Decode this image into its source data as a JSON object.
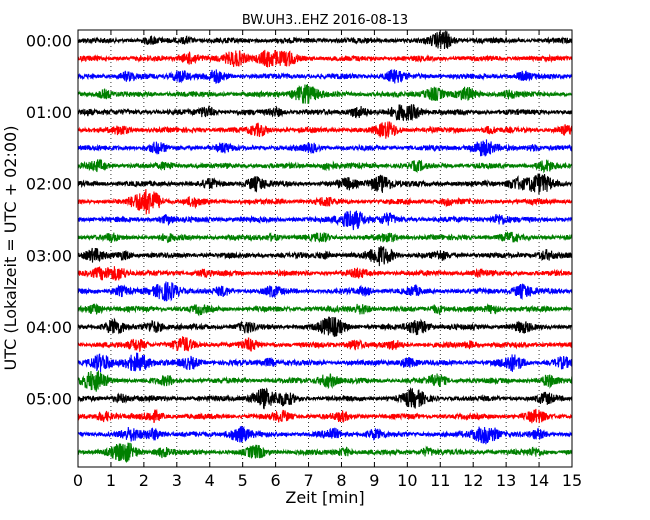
{
  "chart_data": {
    "type": "line",
    "title": "BW.UH3..EHZ 2016-08-13",
    "xlabel": "Zeit  [min]",
    "ylabel": "UTC (Lokalzeit = UTC + 02:00)",
    "xlim": [
      0,
      15
    ],
    "x_ticks": [
      "0",
      "1",
      "2",
      "3",
      "4",
      "5",
      "6",
      "7",
      "8",
      "9",
      "10",
      "11",
      "12",
      "13",
      "14",
      "15"
    ],
    "y_ticks": [
      "00:00",
      "01:00",
      "02:00",
      "03:00",
      "04:00",
      "05:00"
    ],
    "trace_minutes": 15,
    "grid": {
      "vertical_dotted": true
    },
    "colors": [
      "#000000",
      "#ff0000",
      "#0000ff",
      "#008000"
    ],
    "traces": [
      {
        "start": "00:00",
        "color": "#000000",
        "events": [
          [
            2.2,
            0.3
          ],
          [
            3.3,
            0.3
          ],
          [
            11.0,
            0.7
          ],
          [
            11.2,
            0.4
          ]
        ]
      },
      {
        "start": "00:15",
        "color": "#ff0000",
        "events": [
          [
            3.4,
            0.6
          ],
          [
            4.8,
            0.8
          ],
          [
            5.8,
            0.9
          ],
          [
            6.4,
            0.6
          ]
        ]
      },
      {
        "start": "00:30",
        "color": "#0000ff",
        "events": [
          [
            1.5,
            0.4
          ],
          [
            3.1,
            0.6
          ],
          [
            4.2,
            0.6
          ],
          [
            9.6,
            0.6
          ],
          [
            13.5,
            0.4
          ]
        ]
      },
      {
        "start": "00:45",
        "color": "#008000",
        "events": [
          [
            0.8,
            0.4
          ],
          [
            6.9,
            1.0
          ],
          [
            10.8,
            0.7
          ],
          [
            11.8,
            0.6
          ],
          [
            13.1,
            0.4
          ]
        ]
      },
      {
        "start": "01:00",
        "color": "#000000",
        "events": [
          [
            0.3,
            0.3
          ],
          [
            3.9,
            0.5
          ],
          [
            6.0,
            0.4
          ],
          [
            8.5,
            0.6
          ],
          [
            9.8,
            0.7
          ],
          [
            10.2,
            0.6
          ]
        ]
      },
      {
        "start": "01:15",
        "color": "#ff0000",
        "events": [
          [
            1.3,
            0.4
          ],
          [
            5.5,
            0.6
          ],
          [
            9.4,
            0.8
          ],
          [
            12.5,
            0.3
          ],
          [
            14.8,
            0.4
          ]
        ]
      },
      {
        "start": "01:30",
        "color": "#0000ff",
        "events": [
          [
            2.4,
            0.5
          ],
          [
            4.4,
            0.4
          ],
          [
            7.1,
            0.4
          ],
          [
            12.3,
            0.8
          ],
          [
            13.8,
            0.3
          ]
        ]
      },
      {
        "start": "01:45",
        "color": "#008000",
        "events": [
          [
            0.6,
            0.5
          ],
          [
            2.7,
            0.3
          ],
          [
            7.6,
            0.4
          ],
          [
            10.3,
            0.4
          ],
          [
            14.2,
            0.5
          ]
        ]
      },
      {
        "start": "02:00",
        "color": "#000000",
        "events": [
          [
            4.0,
            0.4
          ],
          [
            5.4,
            0.7
          ],
          [
            8.2,
            0.5
          ],
          [
            9.2,
            0.9
          ],
          [
            13.3,
            0.6
          ],
          [
            14.0,
            1.0
          ]
        ]
      },
      {
        "start": "02:15",
        "color": "#ff0000",
        "events": [
          [
            2.0,
            1.0
          ],
          [
            2.3,
            0.6
          ],
          [
            3.5,
            0.4
          ],
          [
            7.5,
            0.4
          ],
          [
            11.2,
            0.3
          ]
        ]
      },
      {
        "start": "02:30",
        "color": "#0000ff",
        "events": [
          [
            2.7,
            0.4
          ],
          [
            8.2,
            0.8
          ],
          [
            8.5,
            0.6
          ],
          [
            9.4,
            0.5
          ],
          [
            12.8,
            0.5
          ]
        ]
      },
      {
        "start": "02:45",
        "color": "#008000",
        "events": [
          [
            1.0,
            0.3
          ],
          [
            2.7,
            0.3
          ],
          [
            5.9,
            0.3
          ],
          [
            7.4,
            0.4
          ],
          [
            9.4,
            0.4
          ],
          [
            13.1,
            0.4
          ]
        ]
      },
      {
        "start": "03:00",
        "color": "#000000",
        "events": [
          [
            0.5,
            0.6
          ],
          [
            1.4,
            0.4
          ],
          [
            7.5,
            0.3
          ],
          [
            9.2,
            1.0
          ],
          [
            11.0,
            0.4
          ],
          [
            14.2,
            0.5
          ]
        ]
      },
      {
        "start": "03:15",
        "color": "#ff0000",
        "events": [
          [
            0.7,
            0.5
          ],
          [
            1.2,
            0.7
          ],
          [
            3.8,
            0.3
          ],
          [
            8.5,
            0.4
          ],
          [
            12.2,
            0.3
          ]
        ]
      },
      {
        "start": "03:30",
        "color": "#0000ff",
        "events": [
          [
            1.3,
            0.5
          ],
          [
            2.7,
            1.0
          ],
          [
            4.4,
            0.4
          ],
          [
            5.9,
            0.5
          ],
          [
            8.7,
            0.4
          ],
          [
            10.2,
            0.4
          ],
          [
            13.5,
            0.7
          ]
        ]
      },
      {
        "start": "03:45",
        "color": "#008000",
        "events": [
          [
            0.5,
            0.5
          ],
          [
            3.7,
            0.4
          ],
          [
            8.6,
            0.5
          ],
          [
            10.9,
            0.4
          ],
          [
            12.6,
            0.4
          ]
        ]
      },
      {
        "start": "04:00",
        "color": "#000000",
        "events": [
          [
            1.1,
            0.7
          ],
          [
            2.3,
            0.6
          ],
          [
            5.1,
            0.5
          ],
          [
            7.7,
            1.0
          ],
          [
            10.3,
            0.8
          ],
          [
            13.5,
            0.5
          ]
        ]
      },
      {
        "start": "04:15",
        "color": "#ff0000",
        "events": [
          [
            1.8,
            0.6
          ],
          [
            3.2,
            0.7
          ],
          [
            5.2,
            0.5
          ],
          [
            8.4,
            0.5
          ],
          [
            9.6,
            0.4
          ],
          [
            11.9,
            0.3
          ]
        ]
      },
      {
        "start": "04:30",
        "color": "#0000ff",
        "events": [
          [
            0.7,
            0.8
          ],
          [
            1.8,
            1.0
          ],
          [
            3.4,
            0.6
          ],
          [
            5.8,
            0.4
          ],
          [
            10.0,
            0.5
          ],
          [
            13.2,
            0.8
          ],
          [
            14.7,
            0.5
          ]
        ]
      },
      {
        "start": "04:45",
        "color": "#008000",
        "events": [
          [
            0.5,
            1.0
          ],
          [
            2.7,
            0.4
          ],
          [
            7.6,
            0.7
          ],
          [
            10.9,
            0.6
          ],
          [
            14.3,
            0.5
          ]
        ]
      },
      {
        "start": "05:00",
        "color": "#000000",
        "events": [
          [
            1.3,
            0.4
          ],
          [
            5.6,
            1.0
          ],
          [
            6.3,
            0.6
          ],
          [
            10.2,
            0.9
          ],
          [
            14.2,
            0.5
          ]
        ]
      },
      {
        "start": "05:15",
        "color": "#ff0000",
        "events": [
          [
            0.8,
            0.5
          ],
          [
            2.3,
            0.5
          ],
          [
            6.2,
            0.5
          ],
          [
            8.0,
            0.4
          ],
          [
            13.9,
            0.6
          ]
        ]
      },
      {
        "start": "05:30",
        "color": "#0000ff",
        "events": [
          [
            1.6,
            0.6
          ],
          [
            2.3,
            0.6
          ],
          [
            4.9,
            0.8
          ],
          [
            7.7,
            0.5
          ],
          [
            9.0,
            0.5
          ],
          [
            12.4,
            1.0
          ],
          [
            14.0,
            0.4
          ]
        ]
      },
      {
        "start": "05:45",
        "color": "#008000",
        "events": [
          [
            1.4,
            1.0
          ],
          [
            2.6,
            0.5
          ],
          [
            5.4,
            0.6
          ],
          [
            8.1,
            0.4
          ],
          [
            10.6,
            0.4
          ],
          [
            13.9,
            0.4
          ]
        ]
      }
    ]
  }
}
